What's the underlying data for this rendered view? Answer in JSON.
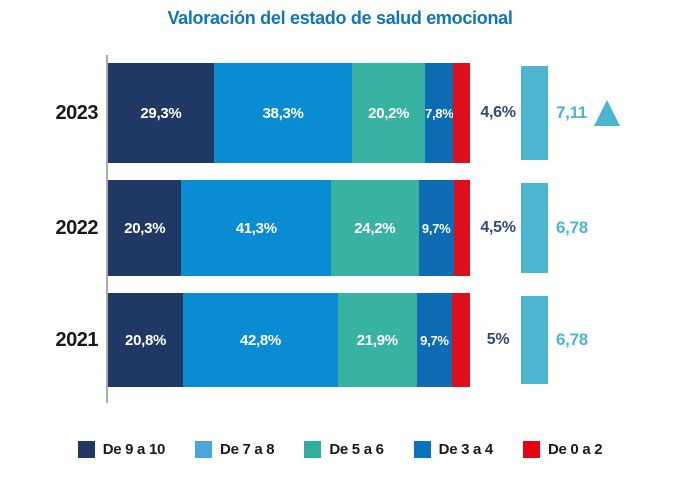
{
  "title": "Valoración del estado de salud emocional",
  "chart_data": {
    "type": "bar",
    "orientation": "horizontal",
    "stacked": true,
    "unit": "%",
    "title": "Valoración del estado de salud emocional",
    "categories": [
      "2023",
      "2022",
      "2021"
    ],
    "series": [
      {
        "name": "De 9 a 10",
        "color": "#1F3864",
        "values": [
          29.3,
          20.3,
          20.8
        ],
        "labels": [
          "29,3%",
          "20,3%",
          "20,8%"
        ]
      },
      {
        "name": "De 7 a 8",
        "color": "#0A8CD2",
        "values": [
          38.3,
          41.3,
          42.8
        ],
        "labels": [
          "38,3%",
          "41,3%",
          "42,8%"
        ]
      },
      {
        "name": "De 5 a 6",
        "color": "#38B2A3",
        "values": [
          20.2,
          24.2,
          21.9
        ],
        "labels": [
          "20,2%",
          "24,2%",
          "21,9%"
        ]
      },
      {
        "name": "De 3 a 4",
        "color": "#0D6CB4",
        "values": [
          7.8,
          9.7,
          9.7
        ],
        "labels": [
          "7,8%",
          "9,7%",
          "9,7%"
        ],
        "small_label": true
      },
      {
        "name": "De 0 a 2",
        "color": "#DE0E1C",
        "values": [
          4.6,
          4.5,
          5.0
        ],
        "labels": [
          "4,6%",
          "4,5%",
          "5%"
        ],
        "label_outside": true
      }
    ],
    "averages": {
      "values": [
        "7,11",
        "6,78",
        "6,78"
      ],
      "trend_up": [
        true,
        false,
        false
      ],
      "bar_color": "#4CB5CF",
      "text_color": "#4CB5CF"
    },
    "legend_position": "bottom",
    "grid": false
  },
  "legend": {
    "items": [
      {
        "label": "De 9 a 10",
        "color": "#1F3864"
      },
      {
        "label": "De 7 a 8",
        "color": "#4BA6DD"
      },
      {
        "label": "De 5 a 6",
        "color": "#2FAF9F"
      },
      {
        "label": "De 3 a 4",
        "color": "#0A72BE"
      },
      {
        "label": "De 0 a 2",
        "color": "#E8000F"
      }
    ]
  },
  "colors": {
    "title": "#0D76BE",
    "axis_line": "#ABABAB",
    "outside_label": "#31497B",
    "year_label": "#1A1A1A"
  }
}
